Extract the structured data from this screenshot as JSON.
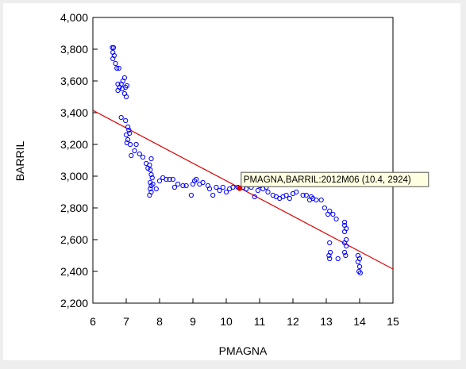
{
  "chart_data": {
    "type": "scatter",
    "xlabel": "PMAGNA",
    "ylabel": "BARRIL",
    "xlim": [
      6,
      15
    ],
    "ylim": [
      2200,
      4000
    ],
    "x_ticks": [
      6,
      7,
      8,
      9,
      10,
      11,
      12,
      13,
      14,
      15
    ],
    "y_ticks": [
      2200,
      2400,
      2600,
      2800,
      3000,
      3200,
      3400,
      3600,
      3800,
      4000
    ],
    "x_tick_labels": [
      "6",
      "7",
      "8",
      "9",
      "10",
      "11",
      "12",
      "13",
      "14",
      "15"
    ],
    "y_tick_labels": [
      "2,200",
      "2,400",
      "2,600",
      "2,800",
      "3,000",
      "3,200",
      "3,400",
      "3,600",
      "3,800",
      "4,000"
    ],
    "grid": false,
    "point_color": "#0000ff",
    "fit_line_color": "#e00000",
    "fit_line": {
      "x": [
        6,
        15
      ],
      "y": [
        3415,
        2415
      ]
    },
    "tooltip": {
      "text": "PMAGNA,BARRIL:2012M06  (10.4, 2924)",
      "x": 10.4,
      "y": 2924
    },
    "points": [
      [
        6.58,
        3810
      ],
      [
        6.62,
        3810
      ],
      [
        6.6,
        3780
      ],
      [
        6.64,
        3760
      ],
      [
        6.6,
        3740
      ],
      [
        6.68,
        3710
      ],
      [
        6.72,
        3680
      ],
      [
        6.78,
        3680
      ],
      [
        6.75,
        3580
      ],
      [
        6.8,
        3560
      ],
      [
        6.75,
        3540
      ],
      [
        6.85,
        3580
      ],
      [
        6.9,
        3600
      ],
      [
        6.95,
        3620
      ],
      [
        6.88,
        3550
      ],
      [
        6.95,
        3520
      ],
      [
        7.0,
        3500
      ],
      [
        6.98,
        3560
      ],
      [
        7.02,
        3570
      ],
      [
        6.85,
        3370
      ],
      [
        6.98,
        3350
      ],
      [
        7.05,
        3310
      ],
      [
        7.08,
        3290
      ],
      [
        7.1,
        3270
      ],
      [
        7.0,
        3260
      ],
      [
        7.05,
        3230
      ],
      [
        7.02,
        3210
      ],
      [
        7.12,
        3200
      ],
      [
        7.3,
        3200
      ],
      [
        7.25,
        3160
      ],
      [
        7.4,
        3140
      ],
      [
        7.15,
        3130
      ],
      [
        7.5,
        3120
      ],
      [
        7.6,
        3080
      ],
      [
        7.65,
        3050
      ],
      [
        7.75,
        3110
      ],
      [
        7.7,
        3070
      ],
      [
        7.72,
        3040
      ],
      [
        7.75,
        3010
      ],
      [
        7.78,
        2990
      ],
      [
        7.72,
        2960
      ],
      [
        7.75,
        2940
      ],
      [
        7.8,
        2950
      ],
      [
        7.72,
        2920
      ],
      [
        7.75,
        2900
      ],
      [
        7.7,
        2880
      ],
      [
        7.9,
        2920
      ],
      [
        8.0,
        2970
      ],
      [
        8.1,
        2990
      ],
      [
        8.2,
        2980
      ],
      [
        8.3,
        2980
      ],
      [
        8.4,
        2980
      ],
      [
        8.45,
        2930
      ],
      [
        8.55,
        2950
      ],
      [
        8.7,
        2940
      ],
      [
        8.8,
        2940
      ],
      [
        8.95,
        2880
      ],
      [
        9.0,
        2950
      ],
      [
        9.05,
        2970
      ],
      [
        9.1,
        2980
      ],
      [
        9.2,
        2950
      ],
      [
        9.3,
        2960
      ],
      [
        9.45,
        2940
      ],
      [
        9.5,
        2920
      ],
      [
        9.6,
        2880
      ],
      [
        9.7,
        2930
      ],
      [
        9.8,
        2910
      ],
      [
        9.9,
        2930
      ],
      [
        10.0,
        2900
      ],
      [
        10.1,
        2920
      ],
      [
        10.2,
        2930
      ],
      [
        10.35,
        2930
      ],
      [
        10.4,
        2924
      ],
      [
        10.5,
        2930
      ],
      [
        10.6,
        2920
      ],
      [
        10.75,
        2930
      ],
      [
        10.85,
        2870
      ],
      [
        10.95,
        2910
      ],
      [
        11.0,
        2940
      ],
      [
        11.1,
        2920
      ],
      [
        11.2,
        2930
      ],
      [
        11.25,
        2900
      ],
      [
        11.4,
        2880
      ],
      [
        11.5,
        2870
      ],
      [
        11.6,
        2860
      ],
      [
        11.7,
        2870
      ],
      [
        11.8,
        2880
      ],
      [
        11.9,
        2860
      ],
      [
        12.0,
        2890
      ],
      [
        12.1,
        2900
      ],
      [
        12.3,
        2880
      ],
      [
        12.4,
        2880
      ],
      [
        12.5,
        2850
      ],
      [
        12.55,
        2870
      ],
      [
        12.6,
        2860
      ],
      [
        12.7,
        2850
      ],
      [
        12.85,
        2850
      ],
      [
        12.95,
        2800
      ],
      [
        13.05,
        2760
      ],
      [
        13.1,
        2780
      ],
      [
        13.2,
        2760
      ],
      [
        13.3,
        2730
      ],
      [
        13.1,
        2580
      ],
      [
        13.12,
        2520
      ],
      [
        13.08,
        2500
      ],
      [
        13.1,
        2480
      ],
      [
        13.35,
        2480
      ],
      [
        13.55,
        2710
      ],
      [
        13.55,
        2690
      ],
      [
        13.6,
        2670
      ],
      [
        13.55,
        2650
      ],
      [
        13.6,
        2600
      ],
      [
        13.55,
        2580
      ],
      [
        13.6,
        2560
      ],
      [
        13.55,
        2520
      ],
      [
        13.58,
        2500
      ],
      [
        13.95,
        2500
      ],
      [
        14.0,
        2480
      ],
      [
        13.95,
        2460
      ],
      [
        14.0,
        2430
      ],
      [
        13.98,
        2400
      ],
      [
        14.02,
        2390
      ]
    ]
  }
}
